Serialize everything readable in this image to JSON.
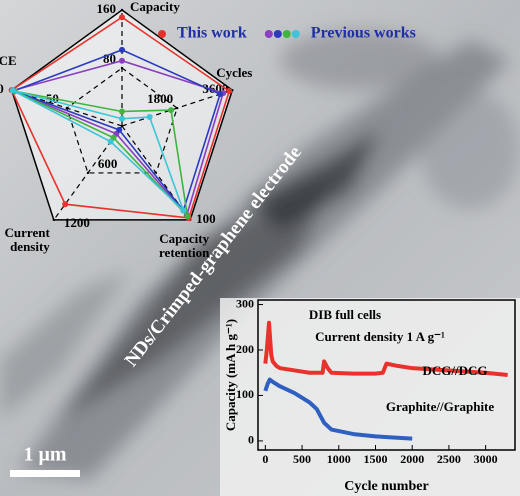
{
  "chart_data": [
    {
      "type": "radar",
      "axes": [
        {
          "name": "Capacity",
          "lim": [
            0,
            160
          ],
          "ticks": [
            80,
            160
          ]
        },
        {
          "name": "Cycles",
          "lim": [
            0,
            3600
          ],
          "ticks": [
            1800,
            3600
          ]
        },
        {
          "name": "Capacity retention",
          "lim": [
            0,
            100
          ],
          "ticks": [
            100
          ]
        },
        {
          "name": "Current density",
          "lim": [
            0,
            1200
          ],
          "ticks": [
            600,
            1200
          ]
        },
        {
          "name": "CE",
          "lim": [
            0,
            100
          ],
          "ticks": [
            50,
            100
          ]
        }
      ],
      "legend": [
        {
          "name": "This work",
          "colors": [
            "#e8322b"
          ]
        },
        {
          "name": "Previous works",
          "colors": [
            "#8a3ec0",
            "#2b3bc0",
            "#3fb43f",
            "#3cc4d8"
          ]
        }
      ],
      "series": [
        {
          "color": "#e8322b",
          "values": [
            150,
            3500,
            98,
            1000,
            100
          ]
        },
        {
          "color": "#8a3ec0",
          "values": [
            90,
            3300,
            95,
            100,
            99
          ]
        },
        {
          "color": "#2b3bc0",
          "values": [
            105,
            3200,
            90,
            50,
            98
          ]
        },
        {
          "color": "#3fb43f",
          "values": [
            20,
            1600,
            96,
            150,
            97
          ]
        },
        {
          "color": "#3cc4d8",
          "values": [
            10,
            900,
            90,
            200,
            99
          ]
        }
      ]
    },
    {
      "type": "line",
      "title": "DIB full cells",
      "subtitle": "Current density  1 A g⁻¹",
      "x_label": "Cycle number",
      "y_label": "Capacity (mA h g⁻¹)",
      "xlim": [
        -100,
        3400
      ],
      "xticks": [
        0,
        500,
        1000,
        1500,
        2000,
        2500,
        3000
      ],
      "ylim": [
        -20,
        310
      ],
      "yticks": [
        0,
        100,
        200,
        300
      ],
      "series": [
        {
          "name": "DCG//DCG",
          "color": "#e8322b",
          "x": [
            0,
            20,
            50,
            80,
            100,
            150,
            200,
            400,
            600,
            780,
            800,
            850,
            900,
            1200,
            1500,
            1600,
            1650,
            1800,
            2000,
            2500,
            3000,
            3300
          ],
          "values": [
            170,
            200,
            260,
            190,
            175,
            165,
            160,
            155,
            150,
            150,
            175,
            160,
            150,
            148,
            148,
            150,
            170,
            165,
            160,
            155,
            150,
            145
          ]
        },
        {
          "name": "Graphite//Graphite",
          "color": "#2f5fc0",
          "x": [
            0,
            30,
            60,
            100,
            200,
            400,
            600,
            700,
            750,
            800,
            900,
            1200,
            1500,
            1800,
            2000
          ],
          "values": [
            110,
            125,
            135,
            130,
            120,
            105,
            85,
            70,
            55,
            40,
            25,
            15,
            10,
            7,
            5
          ]
        }
      ]
    }
  ],
  "image": {
    "label": "NDs/Crimped-graphene electrode",
    "scale_bar": "1 μm"
  }
}
